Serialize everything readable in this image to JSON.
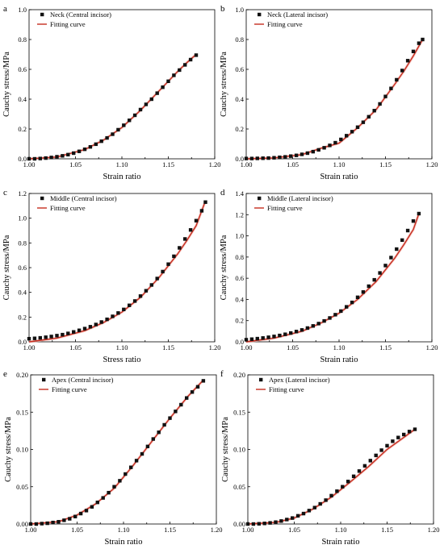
{
  "chart_data": [
    {
      "panel": "a",
      "type": "scatter",
      "legend": [
        "Neck (Central incisor)",
        "Fitting curve"
      ],
      "xlabel": "Strain ratio",
      "ylabel": "Cauchy stress/MPa",
      "xlim": [
        1.0,
        1.2
      ],
      "ylim": [
        0.0,
        1.0
      ],
      "xticks": [
        "1.00",
        "1.05",
        "1.10",
        "1.15",
        "1.20"
      ],
      "yticks": [
        "0.0",
        "0.2",
        "0.4",
        "0.6",
        "0.8",
        "1.0"
      ],
      "x": [
        1.0,
        1.006,
        1.012,
        1.018,
        1.024,
        1.03,
        1.036,
        1.042,
        1.048,
        1.054,
        1.06,
        1.066,
        1.072,
        1.078,
        1.084,
        1.09,
        1.096,
        1.102,
        1.108,
        1.114,
        1.12,
        1.126,
        1.132,
        1.138,
        1.144,
        1.15,
        1.156,
        1.162,
        1.168,
        1.174,
        1.18
      ],
      "y": [
        0.0,
        0.0,
        0.002,
        0.005,
        0.009,
        0.014,
        0.02,
        0.028,
        0.038,
        0.05,
        0.064,
        0.08,
        0.098,
        0.118,
        0.14,
        0.165,
        0.195,
        0.225,
        0.258,
        0.292,
        0.33,
        0.365,
        0.4,
        0.44,
        0.48,
        0.52,
        0.56,
        0.595,
        0.63,
        0.665,
        0.695
      ],
      "fit": [
        [
          1.0,
          0.0
        ],
        [
          1.03,
          0.012
        ],
        [
          1.06,
          0.062
        ],
        [
          1.08,
          0.125
        ],
        [
          1.1,
          0.21
        ],
        [
          1.12,
          0.325
        ],
        [
          1.14,
          0.455
        ],
        [
          1.16,
          0.585
        ],
        [
          1.17,
          0.645
        ],
        [
          1.18,
          0.7
        ]
      ]
    },
    {
      "panel": "b",
      "type": "scatter",
      "legend": [
        "Neck (Lateral incisor)",
        "Fitting curve"
      ],
      "xlabel": "Strain ratio",
      "ylabel": "Cauchy stress/MPa",
      "xlim": [
        1.0,
        1.2
      ],
      "ylim": [
        0.0,
        1.0
      ],
      "xticks": [
        "1.00",
        "1.05",
        "1.10",
        "1.15",
        "1.20"
      ],
      "yticks": [
        "0.0",
        "0.2",
        "0.4",
        "0.6",
        "0.8",
        "1.0"
      ],
      "x": [
        1.0,
        1.006,
        1.012,
        1.018,
        1.024,
        1.03,
        1.036,
        1.042,
        1.048,
        1.054,
        1.06,
        1.066,
        1.072,
        1.078,
        1.084,
        1.09,
        1.096,
        1.102,
        1.108,
        1.114,
        1.12,
        1.126,
        1.132,
        1.138,
        1.144,
        1.15,
        1.156,
        1.162,
        1.168,
        1.174,
        1.18,
        1.186,
        1.19
      ],
      "y": [
        0.002,
        0.002,
        0.003,
        0.004,
        0.005,
        0.007,
        0.01,
        0.013,
        0.018,
        0.023,
        0.03,
        0.038,
        0.048,
        0.06,
        0.074,
        0.09,
        0.108,
        0.13,
        0.155,
        0.182,
        0.212,
        0.245,
        0.282,
        0.323,
        0.368,
        0.418,
        0.472,
        0.53,
        0.592,
        0.658,
        0.72,
        0.775,
        0.8
      ],
      "fit": [
        [
          1.0,
          0.0
        ],
        [
          1.03,
          0.006
        ],
        [
          1.06,
          0.028
        ],
        [
          1.08,
          0.07
        ],
        [
          1.1,
          0.105
        ],
        [
          1.12,
          0.208
        ],
        [
          1.14,
          0.33
        ],
        [
          1.16,
          0.5
        ],
        [
          1.17,
          0.59
        ],
        [
          1.18,
          0.69
        ],
        [
          1.19,
          0.8
        ]
      ]
    },
    {
      "panel": "c",
      "type": "scatter",
      "legend": [
        "Middle (Central incisor)",
        "Fitting curve"
      ],
      "xlabel": "Stress ratio",
      "ylabel": "Cauchy stress/MPa",
      "xlim": [
        1.0,
        1.2
      ],
      "ylim": [
        0.0,
        1.2
      ],
      "xticks": [
        "1.00",
        "1.05",
        "1.10",
        "1.15",
        "1.20"
      ],
      "yticks": [
        "0.0",
        "0.2",
        "0.4",
        "0.6",
        "0.8",
        "1.0",
        "1.2"
      ],
      "x": [
        1.0,
        1.006,
        1.012,
        1.018,
        1.024,
        1.03,
        1.036,
        1.042,
        1.048,
        1.054,
        1.06,
        1.066,
        1.072,
        1.078,
        1.084,
        1.09,
        1.096,
        1.102,
        1.108,
        1.114,
        1.12,
        1.126,
        1.132,
        1.138,
        1.144,
        1.15,
        1.156,
        1.162,
        1.168,
        1.174,
        1.18,
        1.186,
        1.19
      ],
      "y": [
        0.025,
        0.028,
        0.032,
        0.037,
        0.043,
        0.05,
        0.058,
        0.068,
        0.08,
        0.093,
        0.107,
        0.122,
        0.14,
        0.16,
        0.182,
        0.206,
        0.233,
        0.262,
        0.295,
        0.33,
        0.37,
        0.413,
        0.46,
        0.512,
        0.568,
        0.628,
        0.692,
        0.76,
        0.832,
        0.905,
        0.98,
        1.06,
        1.13
      ],
      "fit": [
        [
          1.0,
          0.0
        ],
        [
          1.03,
          0.03
        ],
        [
          1.06,
          0.09
        ],
        [
          1.08,
          0.155
        ],
        [
          1.1,
          0.24
        ],
        [
          1.12,
          0.36
        ],
        [
          1.14,
          0.52
        ],
        [
          1.16,
          0.71
        ],
        [
          1.17,
          0.82
        ],
        [
          1.18,
          0.94
        ],
        [
          1.19,
          1.14
        ]
      ]
    },
    {
      "panel": "d",
      "type": "scatter",
      "legend": [
        "Middle (Lateral incisor)",
        "Fitting curve"
      ],
      "xlabel": "Strain ratio",
      "ylabel": "Cauchy stress/MPa",
      "xlim": [
        1.0,
        1.2
      ],
      "ylim": [
        0.0,
        1.4
      ],
      "xticks": [
        "1.00",
        "1.05",
        "1.10",
        "1.15",
        "1.20"
      ],
      "yticks": [
        "0.0",
        "0.2",
        "0.4",
        "0.6",
        "0.8",
        "1.0",
        "1.2",
        "1.4"
      ],
      "x": [
        1.0,
        1.006,
        1.012,
        1.018,
        1.024,
        1.03,
        1.036,
        1.042,
        1.048,
        1.054,
        1.06,
        1.066,
        1.072,
        1.078,
        1.084,
        1.09,
        1.096,
        1.102,
        1.108,
        1.114,
        1.12,
        1.126,
        1.132,
        1.138,
        1.144,
        1.15,
        1.156,
        1.162,
        1.168,
        1.174,
        1.18,
        1.186
      ],
      "y": [
        0.02,
        0.025,
        0.03,
        0.036,
        0.043,
        0.051,
        0.06,
        0.071,
        0.083,
        0.097,
        0.112,
        0.13,
        0.15,
        0.172,
        0.197,
        0.225,
        0.256,
        0.29,
        0.33,
        0.372,
        0.42,
        0.47,
        0.525,
        0.585,
        0.65,
        0.72,
        0.795,
        0.875,
        0.96,
        1.05,
        1.14,
        1.21
      ],
      "fit": [
        [
          1.0,
          0.0
        ],
        [
          1.03,
          0.035
        ],
        [
          1.06,
          0.1
        ],
        [
          1.08,
          0.175
        ],
        [
          1.1,
          0.27
        ],
        [
          1.12,
          0.4
        ],
        [
          1.14,
          0.57
        ],
        [
          1.16,
          0.79
        ],
        [
          1.17,
          0.92
        ],
        [
          1.18,
          1.06
        ],
        [
          1.186,
          1.21
        ]
      ]
    },
    {
      "panel": "e",
      "type": "scatter",
      "legend": [
        "Apex (Central incisor)",
        "Fitting curve"
      ],
      "xlabel": "Strain ratio",
      "ylabel": "Cauchy stress/MPa",
      "xlim": [
        1.0,
        1.2
      ],
      "ylim": [
        0.0,
        0.2
      ],
      "xticks": [
        "1.00",
        "1.05",
        "1.10",
        "1.15",
        "1.20"
      ],
      "yticks": [
        "0.00",
        "0.05",
        "0.10",
        "0.15",
        "0.20"
      ],
      "x": [
        1.0,
        1.006,
        1.012,
        1.018,
        1.024,
        1.03,
        1.036,
        1.042,
        1.048,
        1.054,
        1.06,
        1.066,
        1.072,
        1.078,
        1.084,
        1.09,
        1.096,
        1.102,
        1.108,
        1.114,
        1.12,
        1.126,
        1.132,
        1.138,
        1.144,
        1.15,
        1.156,
        1.162,
        1.168,
        1.174,
        1.18,
        1.186
      ],
      "y": [
        0.0,
        0.0,
        0.0005,
        0.001,
        0.002,
        0.003,
        0.005,
        0.007,
        0.01,
        0.014,
        0.018,
        0.023,
        0.029,
        0.035,
        0.042,
        0.05,
        0.058,
        0.067,
        0.076,
        0.085,
        0.094,
        0.104,
        0.114,
        0.123,
        0.133,
        0.142,
        0.151,
        0.16,
        0.169,
        0.177,
        0.184,
        0.192
      ],
      "fit": [
        [
          1.0,
          0.0
        ],
        [
          1.03,
          0.003
        ],
        [
          1.05,
          0.012
        ],
        [
          1.07,
          0.027
        ],
        [
          1.09,
          0.048
        ],
        [
          1.11,
          0.078
        ],
        [
          1.13,
          0.11
        ],
        [
          1.15,
          0.142
        ],
        [
          1.17,
          0.172
        ],
        [
          1.186,
          0.193
        ]
      ]
    },
    {
      "panel": "f",
      "type": "scatter",
      "legend": [
        "Apex (Lateral incisor)",
        "Fitting curve"
      ],
      "xlabel": "Strain ratio",
      "ylabel": "Cauchy stress/MPa",
      "xlim": [
        1.0,
        1.2
      ],
      "ylim": [
        0.0,
        0.2
      ],
      "xticks": [
        "1.00",
        "1.05",
        "1.10",
        "1.15",
        "1.20"
      ],
      "yticks": [
        "0.00",
        "0.05",
        "0.10",
        "0.15",
        "0.20"
      ],
      "x": [
        1.0,
        1.006,
        1.012,
        1.018,
        1.024,
        1.03,
        1.036,
        1.042,
        1.048,
        1.054,
        1.06,
        1.066,
        1.072,
        1.078,
        1.084,
        1.09,
        1.096,
        1.102,
        1.108,
        1.114,
        1.12,
        1.126,
        1.132,
        1.138,
        1.144,
        1.15,
        1.156,
        1.162,
        1.168,
        1.174,
        1.18
      ],
      "y": [
        0.0,
        0.0,
        0.0003,
        0.0008,
        0.0015,
        0.0025,
        0.004,
        0.006,
        0.008,
        0.011,
        0.014,
        0.018,
        0.022,
        0.027,
        0.032,
        0.038,
        0.044,
        0.05,
        0.057,
        0.064,
        0.071,
        0.078,
        0.085,
        0.092,
        0.099,
        0.105,
        0.111,
        0.116,
        0.12,
        0.124,
        0.127
      ],
      "fit": [
        [
          1.0,
          0.0
        ],
        [
          1.03,
          0.002
        ],
        [
          1.05,
          0.008
        ],
        [
          1.07,
          0.02
        ],
        [
          1.09,
          0.036
        ],
        [
          1.11,
          0.056
        ],
        [
          1.13,
          0.077
        ],
        [
          1.15,
          0.1
        ],
        [
          1.17,
          0.118
        ],
        [
          1.18,
          0.127
        ]
      ]
    }
  ]
}
